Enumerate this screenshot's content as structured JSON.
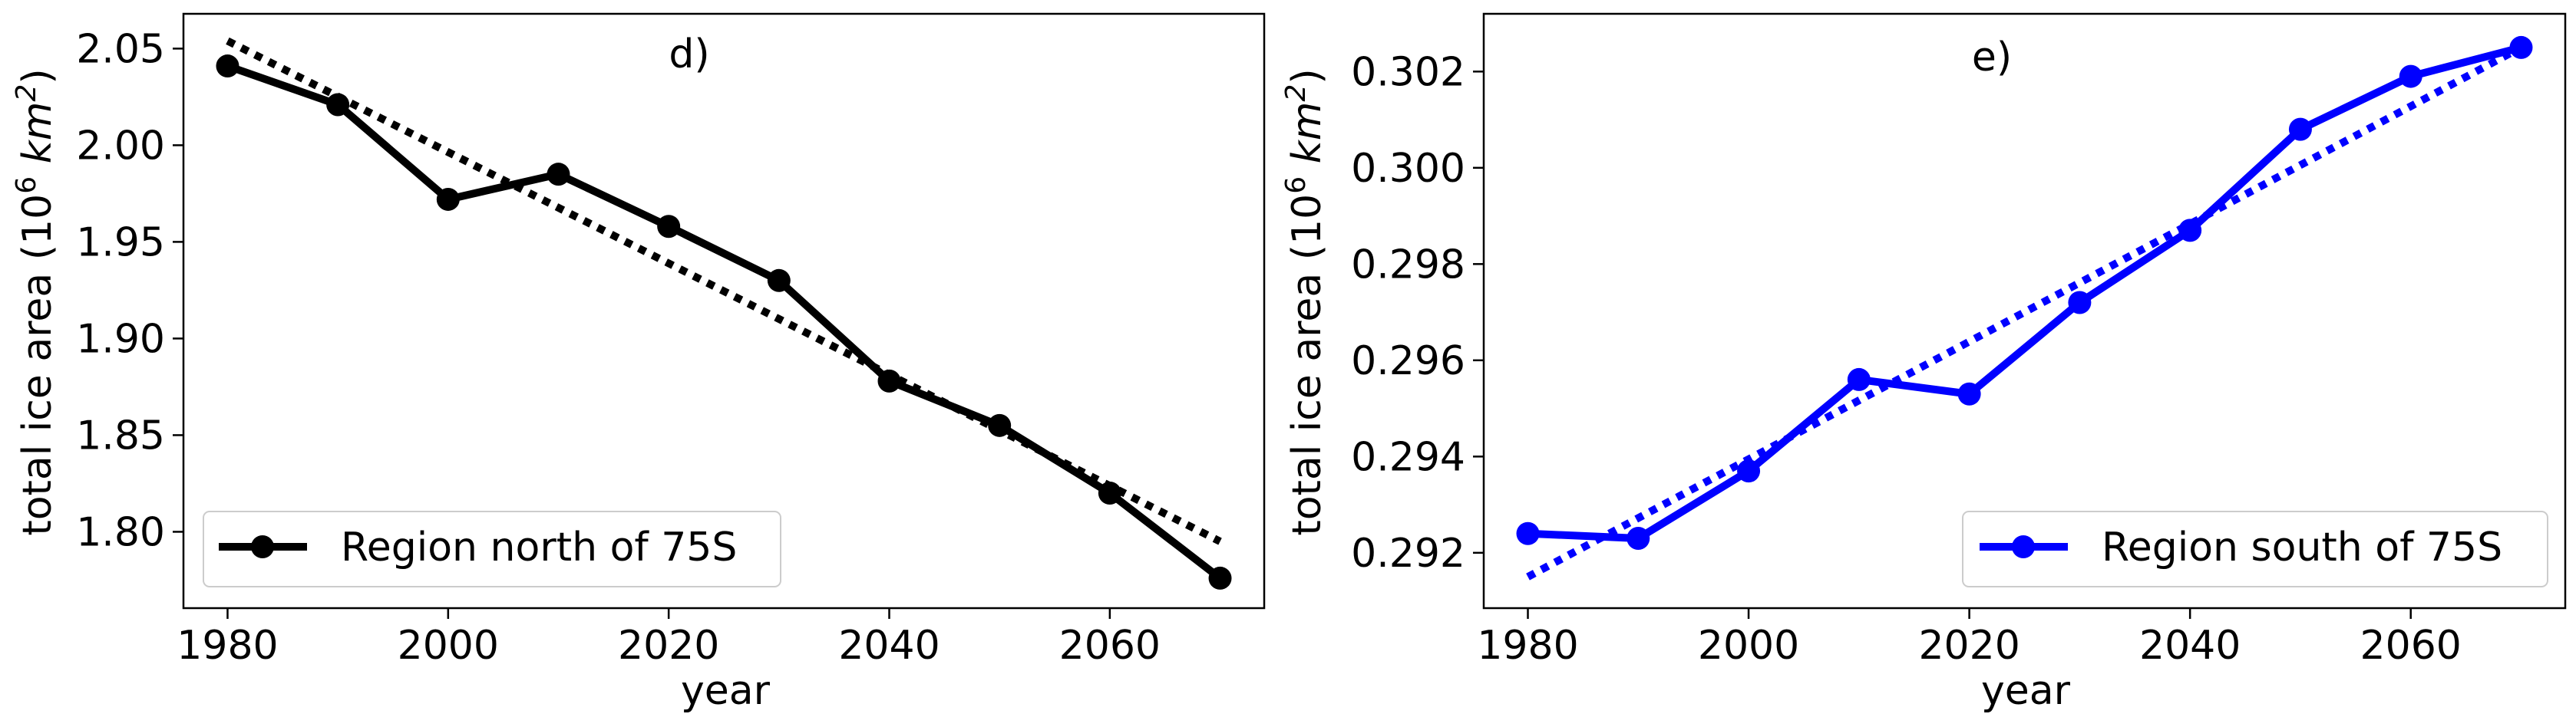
{
  "chart_data": [
    {
      "type": "line",
      "panel_label": "d)",
      "xlabel": "year",
      "ylabel_main": "total ice area (10",
      "ylabel_sup": "6",
      "ylabel_unit": "km",
      "ylabel_unit_sup": "2",
      "ylabel_close": ")",
      "xlim": [
        1976,
        2074
      ],
      "ylim": [
        1.7605,
        2.068
      ],
      "xticks": [
        1980,
        2000,
        2020,
        2040,
        2060
      ],
      "yticks": [
        1.8,
        1.85,
        1.9,
        1.95,
        2.0,
        2.05
      ],
      "ytick_decimals": 2,
      "legend_position": "lower-left",
      "series": [
        {
          "name": "Region north of 75S",
          "color": "#000000",
          "style": "solid-with-markers",
          "x": [
            1980,
            1990,
            2000,
            2010,
            2020,
            2030,
            2040,
            2050,
            2060,
            2070
          ],
          "y": [
            2.041,
            2.021,
            1.972,
            1.985,
            1.958,
            1.93,
            1.878,
            1.855,
            1.82,
            1.776
          ]
        },
        {
          "role": "linear-trend",
          "color": "#000000",
          "style": "dotted",
          "x": [
            1980,
            2070
          ],
          "y": [
            2.054,
            1.795
          ]
        }
      ]
    },
    {
      "type": "line",
      "panel_label": "e)",
      "xlabel": "year",
      "ylabel_main": "total ice area (10",
      "ylabel_sup": "6",
      "ylabel_unit": "km",
      "ylabel_unit_sup": "2",
      "ylabel_close": ")",
      "xlim": [
        1976,
        2074
      ],
      "ylim": [
        0.29085,
        0.3032
      ],
      "xticks": [
        1980,
        2000,
        2020,
        2040,
        2060
      ],
      "yticks": [
        0.292,
        0.294,
        0.296,
        0.298,
        0.3,
        0.302
      ],
      "ytick_decimals": 3,
      "legend_position": "lower-right",
      "series": [
        {
          "name": "Region south of 75S",
          "color": "#0000ff",
          "style": "solid-with-markers",
          "x": [
            1980,
            1990,
            2000,
            2010,
            2020,
            2030,
            2040,
            2050,
            2060,
            2070
          ],
          "y": [
            0.2924,
            0.2923,
            0.2937,
            0.2956,
            0.2953,
            0.2972,
            0.2987,
            0.3008,
            0.3019,
            0.3025
          ]
        },
        {
          "role": "linear-trend",
          "color": "#0000ff",
          "style": "dotted",
          "x": [
            1980,
            2070
          ],
          "y": [
            0.2915,
            0.3025
          ]
        }
      ]
    }
  ]
}
